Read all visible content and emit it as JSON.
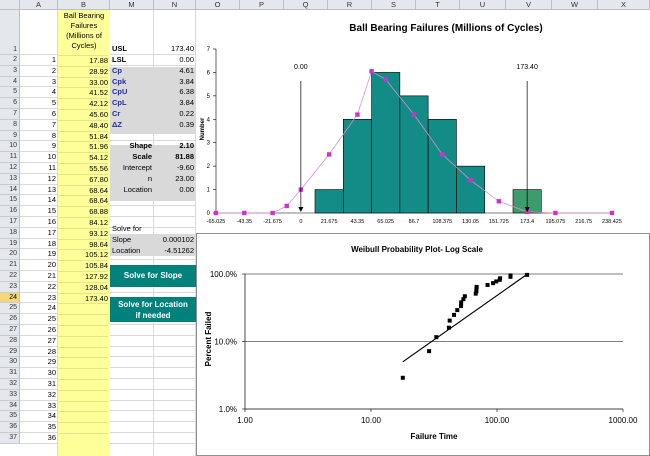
{
  "columns": [
    "A",
    "B",
    "M",
    "N",
    "O",
    "P",
    "Q",
    "R",
    "S",
    "T",
    "U",
    "V",
    "W",
    "X"
  ],
  "rows": [
    "1",
    "2",
    "3",
    "4",
    "5",
    "6",
    "7",
    "8",
    "9",
    "10",
    "11",
    "12",
    "13",
    "14",
    "15",
    "16",
    "17",
    "18",
    "19",
    "20",
    "21",
    "22",
    "23",
    "24",
    "25",
    "26",
    "27",
    "28",
    "29",
    "30",
    "31",
    "32",
    "33",
    "34",
    "35",
    "36",
    "37"
  ],
  "selected_row": "24",
  "col_b_header": [
    "Ball Bearing",
    "Failures",
    "(Millions of",
    "Cycles)"
  ],
  "col_a_index": [
    "1",
    "2",
    "3",
    "4",
    "5",
    "6",
    "7",
    "8",
    "9",
    "10",
    "11",
    "12",
    "13",
    "14",
    "15",
    "16",
    "17",
    "18",
    "19",
    "20",
    "21",
    "22",
    "23",
    "24",
    "25",
    "26",
    "27",
    "28",
    "29",
    "30",
    "31",
    "32",
    "33",
    "34",
    "35",
    "36"
  ],
  "col_b_values": [
    "17.88",
    "28.92",
    "33.00",
    "41.52",
    "42.12",
    "45.60",
    "48.40",
    "51.84",
    "51.96",
    "54.12",
    "55.56",
    "67.80",
    "68.64",
    "68.64",
    "68.88",
    "84.12",
    "93.12",
    "98.64",
    "105.12",
    "105.84",
    "127.92",
    "128.04",
    "173.40"
  ],
  "stats": [
    {
      "label": "USL",
      "value": "173.40",
      "style": "plain-bold"
    },
    {
      "label": "LSL",
      "value": "0.00",
      "style": "plain-bold"
    },
    {
      "label": "Cp",
      "value": "4.61",
      "style": "blue"
    },
    {
      "label": "Cpk",
      "value": "3.84",
      "style": "blue"
    },
    {
      "label": "CpU",
      "value": "6.38",
      "style": "blue"
    },
    {
      "label": "CpL",
      "value": "3.84",
      "style": "blue"
    },
    {
      "label": "Cr",
      "value": "0.22",
      "style": "blue"
    },
    {
      "label": "ΔZ",
      "value": "0.39",
      "style": "blue"
    }
  ],
  "weibull": [
    {
      "label": "Shape",
      "value": "2.10",
      "bold": true
    },
    {
      "label": "Scale",
      "value": "81.88",
      "bold": true
    },
    {
      "label": "Intercept",
      "value": "-9.60",
      "bold": false
    },
    {
      "label": "n",
      "value": "23.00",
      "bold": false
    },
    {
      "label": "Location",
      "value": "0.00",
      "bold": false
    }
  ],
  "solve_for": "Solve for",
  "slope_label": "Slope",
  "slope_value": "0.000102",
  "location_label": "Location",
  "location_value": "-4.51262",
  "btn_slope": "Solve for Slope",
  "btn_location": [
    "Solve for Location",
    "if needed"
  ],
  "colors": {
    "teal": "#00817c",
    "bar": "#138b86",
    "bar_green": "#3c9c6b",
    "yellow": "#ffff99",
    "gray": "#d9d9d9",
    "magenta": "#cc33cc",
    "pink_curve": "#d98fcf"
  },
  "chart_data": [
    {
      "type": "bar",
      "title": "Ball Bearing Failures (Millions of Cycles)",
      "ylabel": "Number",
      "ylim": [
        0,
        7
      ],
      "yticks": [
        "0",
        "1",
        "2",
        "3",
        "4",
        "5",
        "6",
        "7"
      ],
      "categories": [
        "-65.025",
        "-43.35",
        "-21.675",
        "0",
        "21.675",
        "43.35",
        "65.025",
        "86.7",
        "108.375",
        "130.05",
        "151.725",
        "173.4",
        "195.075",
        "216.75",
        "238.425"
      ],
      "values": [
        0,
        0,
        0,
        0,
        1,
        4,
        6,
        5,
        4,
        2,
        0,
        1,
        0,
        0,
        0
      ],
      "highlight_category": "173.4",
      "curve_points": [
        0,
        0,
        0,
        0.3,
        1,
        2.5,
        4.2,
        6.05,
        5.7,
        4.2,
        2.5,
        1.4,
        0.5,
        0.05,
        0,
        0
      ],
      "curve_x": [
        "-65.025",
        "-43.35",
        "-21.675",
        "-10.8375",
        "0",
        "21.675",
        "43.35",
        "54.1875",
        "65.025",
        "86.7",
        "108.375",
        "130.05",
        "151.725",
        "173.4",
        "195.075",
        "238.425"
      ],
      "vlines": [
        {
          "x": 0,
          "label": "0.00"
        },
        {
          "x": 173.4,
          "label": "173.40"
        }
      ]
    },
    {
      "type": "scatter",
      "title": "Weibull Probability Plot- Log Scale",
      "xlabel": "Failure Time",
      "ylabel": "Percent Failed",
      "xscale": "log",
      "yscale": "log",
      "xticks": [
        "1.00",
        "10.00",
        "100.00",
        "1000.00"
      ],
      "yticks": [
        "100.0%",
        "10.0%",
        "1.0%"
      ],
      "xlim": [
        1,
        1000
      ],
      "ylim": [
        1,
        100
      ],
      "points": [
        [
          17.88,
          2.9
        ],
        [
          28.92,
          7.2
        ],
        [
          33.0,
          11.6
        ],
        [
          41.52,
          16.0
        ],
        [
          42.12,
          20.4
        ],
        [
          45.6,
          24.8
        ],
        [
          48.4,
          29.2
        ],
        [
          51.84,
          33.6
        ],
        [
          51.96,
          38.0
        ],
        [
          54.12,
          42.4
        ],
        [
          55.56,
          46.8
        ],
        [
          67.8,
          51.2
        ],
        [
          68.64,
          55.6
        ],
        [
          68.64,
          60.0
        ],
        [
          68.88,
          64.4
        ],
        [
          84.12,
          68.8
        ],
        [
          93.12,
          73.2
        ],
        [
          98.64,
          77.6
        ],
        [
          105.12,
          82.0
        ],
        [
          105.84,
          86.4
        ],
        [
          127.92,
          90.8
        ],
        [
          128.04,
          95.2
        ],
        [
          173.4,
          97.0
        ]
      ],
      "fit_line": [
        [
          17.88,
          5.0
        ],
        [
          173.4,
          99.0
        ]
      ]
    }
  ]
}
